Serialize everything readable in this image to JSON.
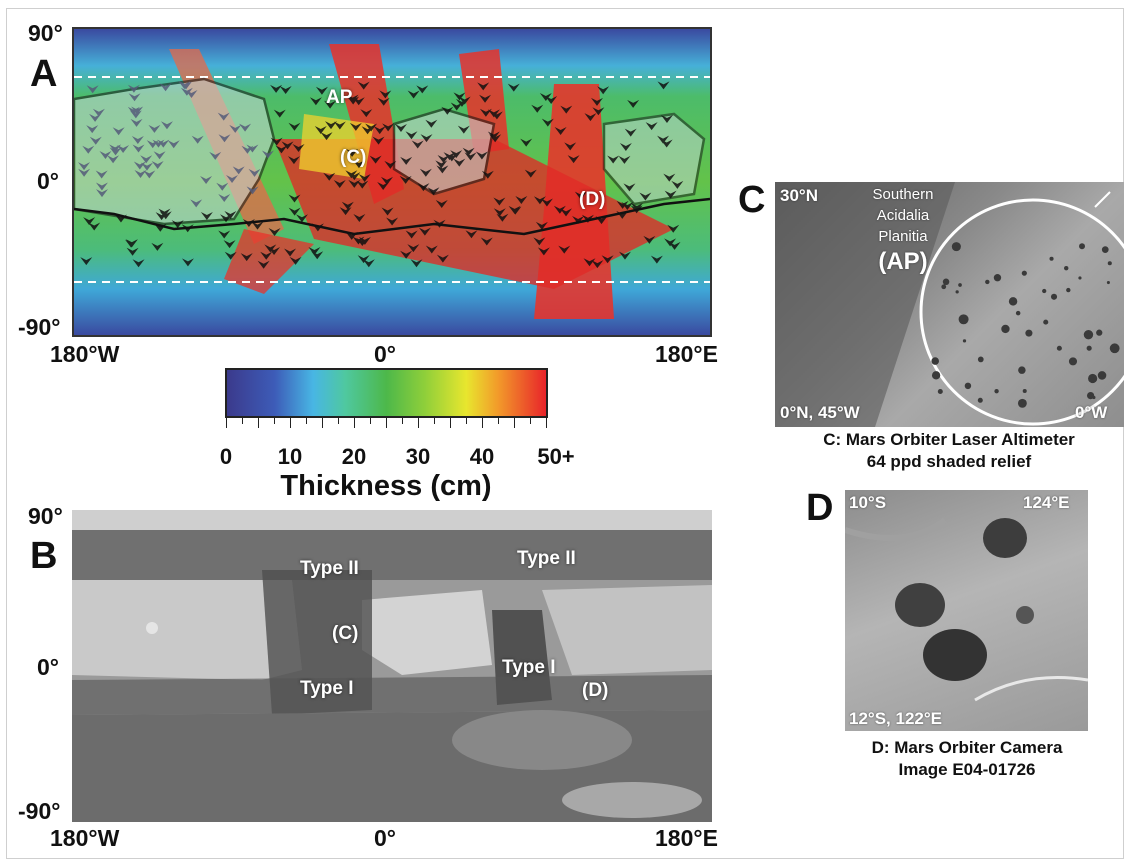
{
  "panel_a": {
    "letter": "A",
    "lat_top": "90°",
    "lat_mid": "0°",
    "lat_bottom": "-90°",
    "lon_left": "180°W",
    "lon_mid": "0°",
    "lon_right": "180°E",
    "labels": {
      "ap": "AP",
      "c": "(C)",
      "d": "(D)"
    }
  },
  "colorbar": {
    "ticks": [
      "0",
      "10",
      "20",
      "30",
      "40",
      "50+"
    ],
    "title": "Thickness (cm)",
    "colors": [
      "#3b3a8c",
      "#48b6e4",
      "#4db84a",
      "#e8e62e",
      "#e8242a"
    ]
  },
  "panel_b": {
    "letter": "B",
    "lat_top": "90°",
    "lat_mid": "0°",
    "lat_bottom": "-90°",
    "lon_left": "180°W",
    "lon_mid": "0°",
    "lon_right": "180°E",
    "labels": {
      "type2_left": "Type II",
      "type2_right": "Type II",
      "c": "(C)",
      "type1_left": "Type I",
      "type1_right": "Type I",
      "d": "(D)"
    }
  },
  "panel_c": {
    "letter": "C",
    "corner_tl": "30°N",
    "name_line1": "Southern",
    "name_line2": "Acidalia",
    "name_line3": "Planitia",
    "name_abbr": "(AP)",
    "corner_bl": "0°N, 45°W",
    "corner_br": "0°W",
    "caption_line1": "C: Mars Orbiter Laser Altimeter",
    "caption_line2": "64 ppd shaded relief"
  },
  "panel_d": {
    "letter": "D",
    "corner_tl": "10°S",
    "corner_tr": "124°E",
    "corner_bl": "12°S, 122°E",
    "caption_line1": "D: Mars Orbiter Camera",
    "caption_line2": "Image E04-01726"
  }
}
